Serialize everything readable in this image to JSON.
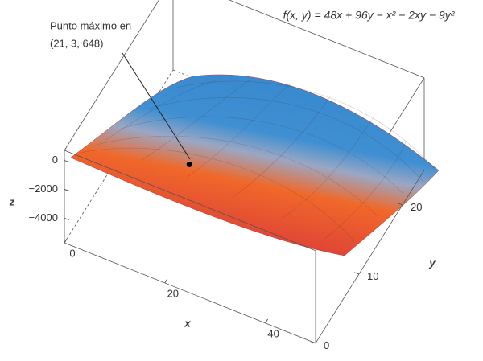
{
  "chart_data": {
    "type": "surface",
    "title": "f(x, y) = 48x + 96y − x² − 2xy − 9y²",
    "xlabel": "x",
    "ylabel": "y",
    "zlabel": "z",
    "xlim": [
      0,
      50
    ],
    "ylim": [
      0,
      25
    ],
    "zlim": [
      -5700,
      700
    ],
    "xticks": [
      0,
      20,
      40
    ],
    "yticks": [
      0,
      10,
      20
    ],
    "zticks": [
      0,
      {
        "value": -2000,
        "label": "−2000"
      },
      {
        "value": -4000,
        "label": "−4000"
      }
    ],
    "annotation": {
      "lines": [
        "Punto máximo en",
        "(21, 3, 648)"
      ],
      "point": [
        21,
        3,
        648
      ]
    }
  }
}
